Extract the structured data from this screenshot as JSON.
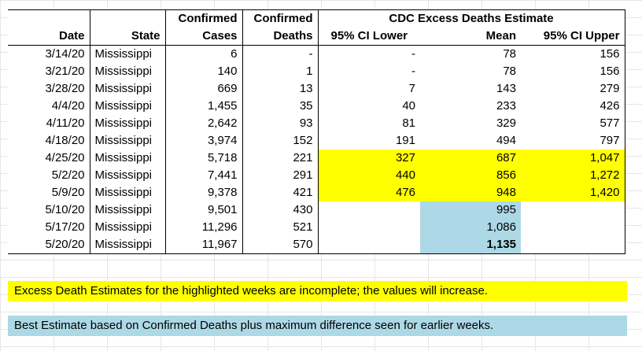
{
  "headers": {
    "top": {
      "confirmed_cases": "Confirmed",
      "confirmed_deaths": "Confirmed",
      "cdc": "CDC Excess Deaths Estimate"
    },
    "bottom": {
      "date": "Date",
      "state": "State",
      "confirmed_cases": "Cases",
      "confirmed_deaths": "Deaths",
      "ci_lower": "95% CI Lower",
      "mean": "Mean",
      "ci_upper": "95% CI Upper"
    }
  },
  "rows": [
    {
      "date": "3/14/20",
      "state": "Mississippi",
      "cases": "6",
      "deaths": "-",
      "lower": "-",
      "mean": "78",
      "upper": "156"
    },
    {
      "date": "3/21/20",
      "state": "Mississippi",
      "cases": "140",
      "deaths": "1",
      "lower": "-",
      "mean": "78",
      "upper": "156"
    },
    {
      "date": "3/28/20",
      "state": "Mississippi",
      "cases": "669",
      "deaths": "13",
      "lower": "7",
      "mean": "143",
      "upper": "279"
    },
    {
      "date": "4/4/20",
      "state": "Mississippi",
      "cases": "1,455",
      "deaths": "35",
      "lower": "40",
      "mean": "233",
      "upper": "426"
    },
    {
      "date": "4/11/20",
      "state": "Mississippi",
      "cases": "2,642",
      "deaths": "93",
      "lower": "81",
      "mean": "329",
      "upper": "577"
    },
    {
      "date": "4/18/20",
      "state": "Mississippi",
      "cases": "3,974",
      "deaths": "152",
      "lower": "191",
      "mean": "494",
      "upper": "797"
    },
    {
      "date": "4/25/20",
      "state": "Mississippi",
      "cases": "5,718",
      "deaths": "221",
      "lower": "327",
      "mean": "687",
      "upper": "1,047"
    },
    {
      "date": "5/2/20",
      "state": "Mississippi",
      "cases": "7,441",
      "deaths": "291",
      "lower": "440",
      "mean": "856",
      "upper": "1,272"
    },
    {
      "date": "5/9/20",
      "state": "Mississippi",
      "cases": "9,378",
      "deaths": "421",
      "lower": "476",
      "mean": "948",
      "upper": "1,420"
    },
    {
      "date": "5/10/20",
      "state": "Mississippi",
      "cases": "9,501",
      "deaths": "430",
      "lower": "",
      "mean": "995",
      "upper": ""
    },
    {
      "date": "5/17/20",
      "state": "Mississippi",
      "cases": "11,296",
      "deaths": "521",
      "lower": "",
      "mean": "1,086",
      "upper": ""
    },
    {
      "date": "5/20/20",
      "state": "Mississippi",
      "cases": "11,967",
      "deaths": "570",
      "lower": "",
      "mean": "1,135",
      "upper": ""
    }
  ],
  "highlights": {
    "yellow_color": "#ffff00",
    "blue_color": "#add8e6",
    "yellow_rows_cdc": [
      6,
      7,
      8
    ],
    "blue_rows_mean": [
      9,
      10,
      11
    ],
    "bold_cells": [
      {
        "row": 11,
        "col": "mean"
      }
    ]
  },
  "notes": {
    "yellow": "Excess Death Estimates for the highlighted weeks are incomplete; the values will increase.",
    "blue": "Best Estimate based on Confirmed Deaths plus  maximum difference seen for earlier weeks."
  }
}
